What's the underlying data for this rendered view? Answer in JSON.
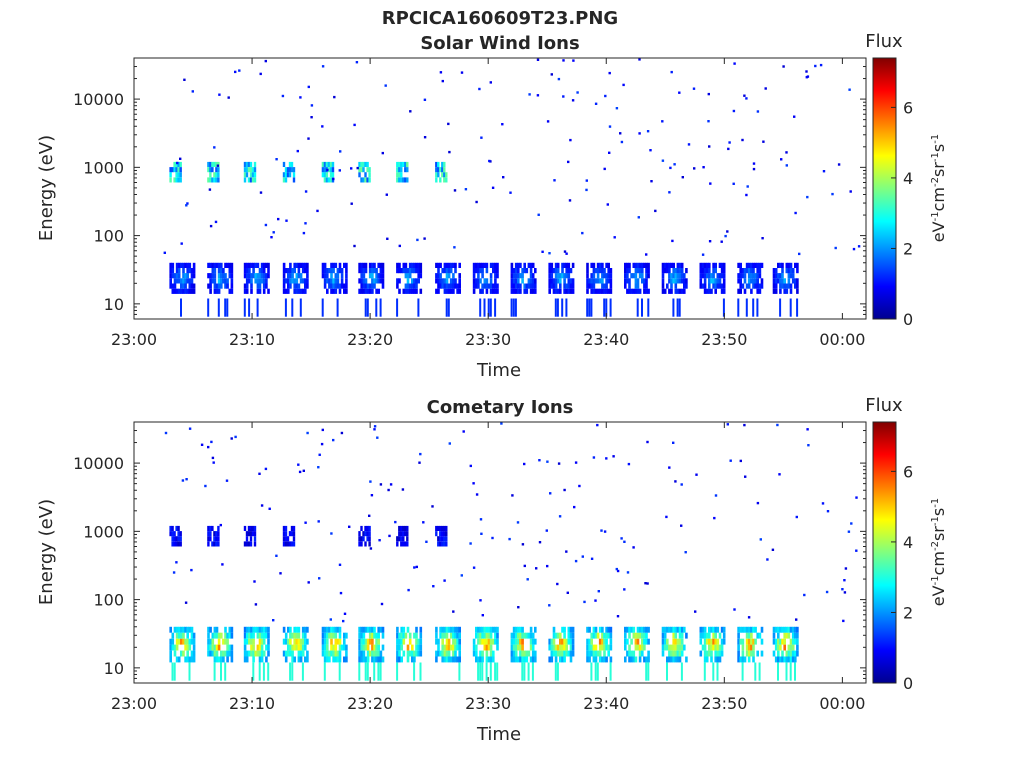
{
  "figure": {
    "title": "RPCICA160609T23.PNG"
  },
  "chart_data": [
    {
      "type": "heatmap",
      "title": "Solar Wind Ions",
      "xlabel": "Time",
      "ylabel": "Energy (eV)",
      "x_ticks": [
        "23:00",
        "23:10",
        "23:20",
        "23:30",
        "23:40",
        "23:50",
        "00:00"
      ],
      "xlim_minutes": [
        0,
        62
      ],
      "y_scale": "log",
      "y_ticks": [
        "10",
        "100",
        "1000",
        "10000"
      ],
      "ylim": [
        6,
        40000
      ],
      "colorbar": {
        "label": "Flux",
        "units": "eV-1cm-2sr-1s-1",
        "ticks": [
          "0",
          "2",
          "4",
          "6"
        ],
        "range": [
          0,
          7.4
        ],
        "colormap": "jet"
      },
      "sweep_starts_minutes": [
        3.0,
        6.2,
        9.3,
        12.6,
        15.9,
        19.0,
        22.2,
        25.5,
        28.7,
        31.9,
        35.1,
        38.3,
        41.5,
        44.7,
        47.9,
        51.1,
        54.1
      ],
      "low_band_eV": [
        14,
        40
      ],
      "low_band_flux_peak": 2.8,
      "mid_band_eV": [
        600,
        1200
      ],
      "mid_band_flux_peak": 3.6,
      "mid_band_sweeps": [
        3.0,
        6.2,
        9.3,
        12.6,
        15.9,
        19.0,
        22.2,
        25.5
      ]
    },
    {
      "type": "heatmap",
      "title": "Cometary Ions",
      "xlabel": "Time",
      "ylabel": "Energy (eV)",
      "x_ticks": [
        "23:00",
        "23:10",
        "23:20",
        "23:30",
        "23:40",
        "23:50",
        "00:00"
      ],
      "xlim_minutes": [
        0,
        62
      ],
      "y_scale": "log",
      "y_ticks": [
        "10",
        "100",
        "1000",
        "10000"
      ],
      "ylim": [
        6,
        40000
      ],
      "colorbar": {
        "label": "Flux",
        "units": "eV-1cm-2sr-1s-1",
        "ticks": [
          "0",
          "2",
          "4",
          "6"
        ],
        "range": [
          0,
          7.4
        ],
        "colormap": "jet"
      },
      "sweep_starts_minutes": [
        3.0,
        6.2,
        9.3,
        12.6,
        15.9,
        19.0,
        22.2,
        25.5,
        28.7,
        31.9,
        35.1,
        38.3,
        41.5,
        44.7,
        47.9,
        51.1,
        54.1
      ],
      "low_band_eV": [
        12,
        40
      ],
      "low_band_flux_peak": 6.8,
      "mid_band_eV": [
        600,
        1200
      ],
      "mid_band_flux_peak": 1.2,
      "mid_band_sweeps": [
        3.0,
        6.2,
        9.3,
        12.6,
        19.0,
        22.2,
        25.5
      ]
    }
  ]
}
